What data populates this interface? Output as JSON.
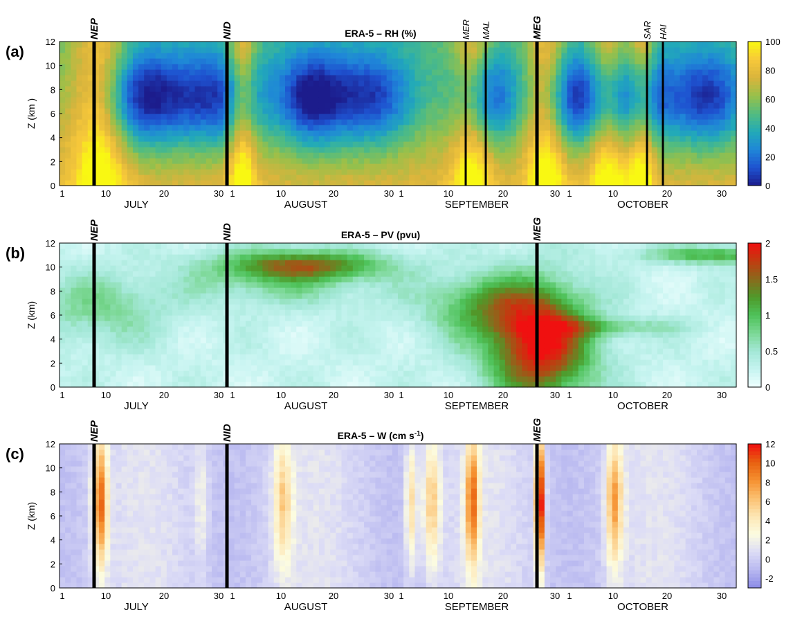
{
  "chart_data": [
    {
      "type": "heatmap",
      "panel_label": "(a)",
      "title": "ERA-5 – RH (%)",
      "ylabel": "Z (km )",
      "ylim": [
        0,
        12
      ],
      "y_ticks": [
        "0",
        "2",
        "4",
        "6",
        "8",
        "10",
        "12"
      ],
      "colorbar": {
        "min": 0,
        "max": 100,
        "ticks": [
          "0",
          "20",
          "40",
          "60",
          "80",
          "100"
        ],
        "colors": [
          "#1c1c8c",
          "#1e52d0",
          "#1f86d8",
          "#22aab8",
          "#52bc80",
          "#98c04a",
          "#d9b43c",
          "#f7c83a",
          "#f9f812"
        ]
      },
      "events": [
        {
          "label": "NEP",
          "bold": true
        },
        {
          "label": "NID",
          "bold": true
        },
        {
          "label": "MER",
          "bold": false
        },
        {
          "label": "MAL",
          "bold": false
        },
        {
          "label": "MEG",
          "bold": true
        },
        {
          "label": "SAR",
          "bold": false
        },
        {
          "label": "HAI",
          "bold": false
        }
      ]
    },
    {
      "type": "heatmap",
      "panel_label": "(b)",
      "title": "ERA-5 – PV (pvu)",
      "ylabel": "Z (km)",
      "ylim": [
        0,
        12
      ],
      "y_ticks": [
        "0",
        "2",
        "4",
        "6",
        "8",
        "10",
        "12"
      ],
      "colorbar": {
        "min": 0,
        "max": 2,
        "ticks": [
          "0",
          "0.5",
          "1",
          "1.5",
          "2"
        ],
        "colors": [
          "#f0ffff",
          "#c6f4f0",
          "#a4e8d8",
          "#7cd896",
          "#4ec25a",
          "#4e9a2a",
          "#8a6a1c",
          "#c03c10",
          "#f01010"
        ]
      },
      "events": [
        {
          "label": "NEP",
          "bold": true
        },
        {
          "label": "NID",
          "bold": true
        },
        {
          "label": "MEG",
          "bold": true
        }
      ]
    },
    {
      "type": "heatmap",
      "panel_label": "(c)",
      "title": "ERA-5 – W (cm s",
      "title_sup": "-1",
      "title_end": ")",
      "ylabel": "Z (km)",
      "ylim": [
        0,
        12
      ],
      "y_ticks": [
        "0",
        "2",
        "4",
        "6",
        "8",
        "10",
        "12"
      ],
      "colorbar": {
        "min": -3,
        "max": 12,
        "ticks": [
          "-2",
          "0",
          "2",
          "4",
          "6",
          "8",
          "10",
          "12"
        ],
        "colors": [
          "#8a8ae6",
          "#b8b8f0",
          "#dcdcf6",
          "#fcfce0",
          "#fde6b4",
          "#fbc070",
          "#f59030",
          "#e86010",
          "#f01010"
        ]
      },
      "events": [
        {
          "label": "NEP",
          "bold": true
        },
        {
          "label": "NID",
          "bold": true
        },
        {
          "label": "MEG",
          "bold": true
        }
      ]
    }
  ],
  "x_axis": {
    "tick_labels": [
      "1",
      "10",
      "20",
      "30",
      "1",
      "10",
      "20",
      "30",
      "1",
      "10",
      "20",
      "30",
      "1",
      "10",
      "20",
      "30"
    ],
    "month_labels": [
      "JULY",
      "AUGUST",
      "SEPTEMBER",
      "OCTOBER"
    ]
  }
}
